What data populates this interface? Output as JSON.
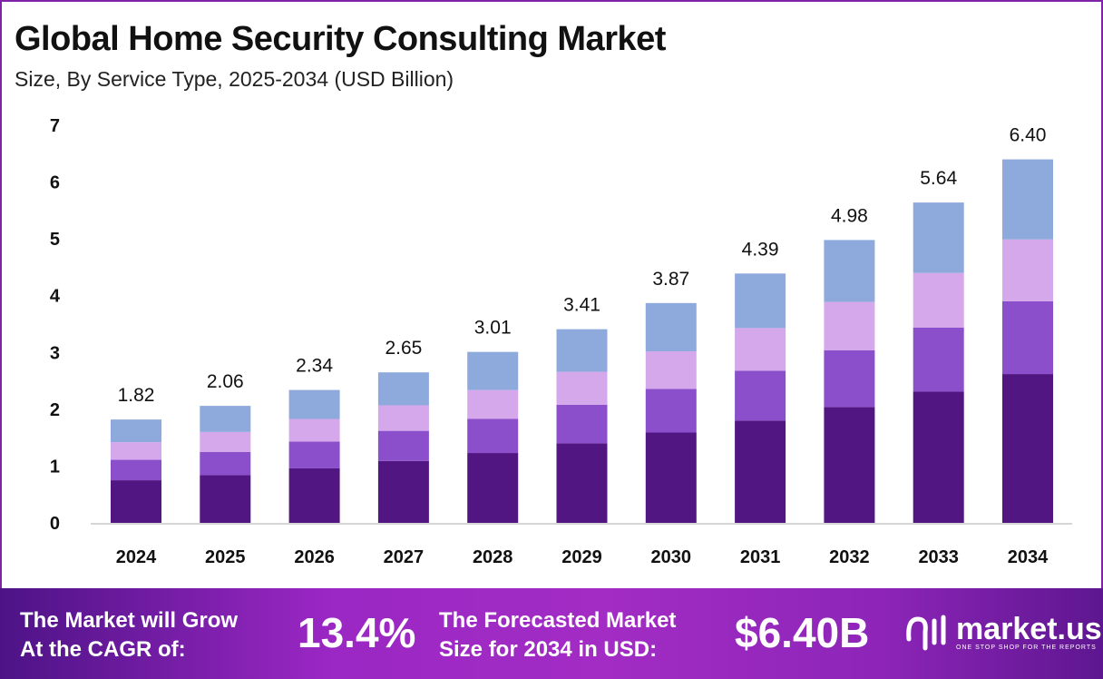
{
  "chart_data": {
    "type": "bar",
    "stacked": true,
    "title": "Global Home Security Consulting Market",
    "subtitle": "Size, By Service Type, 2025-2034 (USD Billion)",
    "xlabel": "",
    "ylabel": "",
    "ylim": [
      0,
      7
    ],
    "yticks": [
      "0",
      "1",
      "2",
      "3",
      "4",
      "5",
      "6",
      "7"
    ],
    "grid": false,
    "categories": [
      "2024",
      "2025",
      "2026",
      "2027",
      "2028",
      "2029",
      "2030",
      "2031",
      "2032",
      "2033",
      "2034"
    ],
    "totals": [
      "1.82",
      "2.06",
      "2.34",
      "2.65",
      "3.01",
      "3.41",
      "3.87",
      "4.39",
      "4.98",
      "5.64",
      "6.40"
    ],
    "series": [
      {
        "color": "#521682",
        "values": [
          0.75,
          0.84,
          0.96,
          1.09,
          1.23,
          1.4,
          1.59,
          1.8,
          2.04,
          2.31,
          2.62
        ]
      },
      {
        "color": "#8b4fcb",
        "values": [
          0.36,
          0.41,
          0.47,
          0.53,
          0.6,
          0.68,
          0.77,
          0.88,
          1.0,
          1.13,
          1.28
        ]
      },
      {
        "color": "#d4a8ea",
        "values": [
          0.31,
          0.35,
          0.4,
          0.45,
          0.51,
          0.58,
          0.66,
          0.75,
          0.85,
          0.96,
          1.09
        ]
      },
      {
        "color": "#8eaadc",
        "values": [
          0.4,
          0.46,
          0.51,
          0.58,
          0.67,
          0.75,
          0.85,
          0.96,
          1.09,
          1.24,
          1.41
        ]
      }
    ]
  },
  "footer": {
    "cagr_label_line1": "The Market will Grow",
    "cagr_label_line2": "At the CAGR of:",
    "cagr_value": "13.4%",
    "forecast_label_line1": "The Forecasted Market",
    "forecast_label_line2": "Size for 2034 in USD:",
    "forecast_value": "$6.40B",
    "brand_name": "market.us",
    "brand_tagline": "ONE STOP SHOP FOR THE REPORTS"
  }
}
